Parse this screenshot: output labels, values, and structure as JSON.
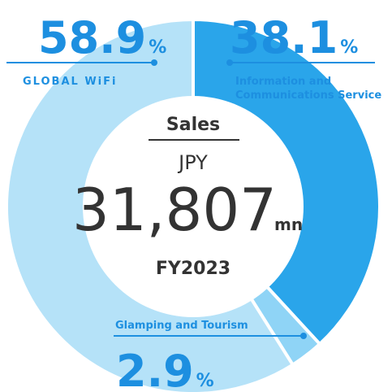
{
  "chart_data": {
    "type": "pie",
    "categories": [
      "Information and Communications Service",
      "Glamping and Tourism",
      "GLOBAL WiFi"
    ],
    "values": [
      38.1,
      2.9,
      58.9
    ],
    "colors": [
      "#2aa5ea",
      "#8fd4f6",
      "#b5e2f8"
    ],
    "value_unit": "%",
    "center_title": "Sales",
    "currency": "JPY",
    "total": "31,807",
    "total_unit": "mn",
    "period": "FY2023"
  }
}
